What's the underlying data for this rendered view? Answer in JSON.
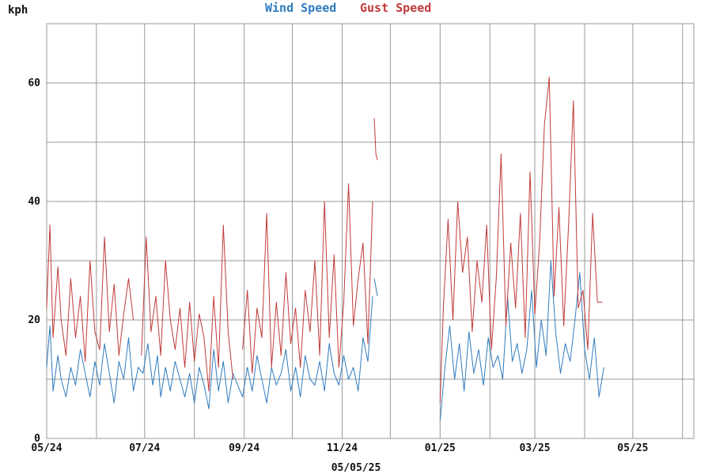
{
  "chart_data": {
    "type": "line",
    "unit_label": "kph",
    "title_parts": [
      "Wind Speed",
      "Gust Speed"
    ],
    "date_label": "05/05/25",
    "x_tick_labels": [
      "05/24",
      "07/24",
      "09/24",
      "11/24",
      "01/25",
      "03/25",
      "05/25"
    ],
    "x_tick_months": [
      "2024-05",
      "2024-07",
      "2024-09",
      "2024-11",
      "2025-01",
      "2025-03",
      "2025-05"
    ],
    "xlim": [
      "2024-05-01",
      "2025-06-08"
    ],
    "y_ticks": [
      0,
      20,
      40,
      60
    ],
    "ylim": [
      0,
      70
    ],
    "grid": true,
    "colors": {
      "wind": "#2f7bbf",
      "gust": "#c03a3a",
      "grid": "#999999"
    },
    "series": [
      {
        "name": "Wind Speed",
        "segments": [
          {
            "x": [
              "2024-05-01",
              "2024-05-03",
              "2024-05-05",
              "2024-05-08",
              "2024-05-10",
              "2024-05-13",
              "2024-05-16",
              "2024-05-19",
              "2024-05-22",
              "2024-05-25",
              "2024-05-28",
              "2024-05-31",
              "2024-06-03",
              "2024-06-06",
              "2024-06-09",
              "2024-06-12",
              "2024-06-15",
              "2024-06-18",
              "2024-06-21",
              "2024-06-24",
              "2024-06-27",
              "2024-06-30",
              "2024-07-03",
              "2024-07-06",
              "2024-07-09",
              "2024-07-11",
              "2024-07-14",
              "2024-07-17",
              "2024-07-20",
              "2024-07-23",
              "2024-07-26",
              "2024-07-29",
              "2024-08-01",
              "2024-08-04",
              "2024-08-07",
              "2024-08-10",
              "2024-08-13",
              "2024-08-16",
              "2024-08-19",
              "2024-08-22",
              "2024-08-25",
              "2024-08-28",
              "2024-08-31",
              "2024-09-03",
              "2024-09-06",
              "2024-09-09",
              "2024-09-12",
              "2024-09-15",
              "2024-09-18",
              "2024-09-21",
              "2024-09-24",
              "2024-09-27",
              "2024-09-30",
              "2024-10-03",
              "2024-10-06",
              "2024-10-09",
              "2024-10-12",
              "2024-10-15",
              "2024-10-18",
              "2024-10-21",
              "2024-10-24",
              "2024-10-27",
              "2024-10-30",
              "2024-11-02",
              "2024-11-05",
              "2024-11-08",
              "2024-11-11",
              "2024-11-14",
              "2024-11-17",
              "2024-11-20"
            ],
            "y": [
              12,
              19,
              8,
              14,
              10,
              7,
              12,
              9,
              15,
              11,
              7,
              13,
              9,
              16,
              11,
              6,
              13,
              10,
              17,
              8,
              12,
              11,
              16,
              9,
              14,
              7,
              12,
              8,
              13,
              10,
              7,
              11,
              6,
              12,
              9,
              5,
              15,
              8,
              13,
              6,
              11,
              9,
              7,
              12,
              8,
              14,
              10,
              6,
              12,
              9,
              11,
              15,
              8,
              12,
              7,
              14,
              10,
              9,
              13,
              8,
              16,
              11,
              9,
              14,
              10,
              12,
              8,
              17,
              13,
              24
            ]
          },
          {
            "x": [
              "2024-11-21",
              "2024-11-23"
            ],
            "y": [
              27,
              24
            ]
          },
          {
            "x": [
              "2025-01-01",
              "2025-01-04",
              "2025-01-07",
              "2025-01-10",
              "2025-01-13",
              "2025-01-16",
              "2025-01-19",
              "2025-01-22",
              "2025-01-25",
              "2025-01-28",
              "2025-01-31",
              "2025-02-03",
              "2025-02-06",
              "2025-02-09",
              "2025-02-12",
              "2025-02-15",
              "2025-02-18",
              "2025-02-21",
              "2025-02-24",
              "2025-02-27",
              "2025-03-02",
              "2025-03-05",
              "2025-03-08",
              "2025-03-11",
              "2025-03-14",
              "2025-03-17",
              "2025-03-20",
              "2025-03-23",
              "2025-03-26",
              "2025-03-29",
              "2025-04-01",
              "2025-04-04",
              "2025-04-07",
              "2025-04-10",
              "2025-04-13"
            ],
            "y": [
              3,
              12,
              19,
              10,
              16,
              8,
              18,
              11,
              15,
              9,
              17,
              12,
              14,
              10,
              24,
              13,
              16,
              11,
              15,
              25,
              12,
              20,
              14,
              30,
              18,
              11,
              16,
              13,
              20,
              28,
              15,
              10,
              17,
              7,
              12
            ]
          }
        ]
      },
      {
        "name": "Gust Speed",
        "segments": [
          {
            "x": [
              "2024-05-01",
              "2024-05-03",
              "2024-05-05",
              "2024-05-08",
              "2024-05-10",
              "2024-05-13",
              "2024-05-16",
              "2024-05-19",
              "2024-05-22",
              "2024-05-25",
              "2024-05-28",
              "2024-05-31",
              "2024-06-03",
              "2024-06-06",
              "2024-06-09",
              "2024-06-12",
              "2024-06-15",
              "2024-06-18",
              "2024-06-21",
              "2024-06-24"
            ],
            "y": [
              22,
              36,
              17,
              29,
              20,
              14,
              27,
              17,
              24,
              13,
              30,
              18,
              15,
              34,
              18,
              26,
              14,
              21,
              27,
              20
            ]
          },
          {
            "x": [
              "2024-06-29",
              "2024-07-02",
              "2024-07-05",
              "2024-07-08",
              "2024-07-11",
              "2024-07-14",
              "2024-07-17",
              "2024-07-20",
              "2024-07-23",
              "2024-07-26",
              "2024-07-29",
              "2024-08-01",
              "2024-08-04",
              "2024-08-07",
              "2024-08-10",
              "2024-08-13",
              "2024-08-16",
              "2024-08-19",
              "2024-08-22",
              "2024-08-25"
            ],
            "y": [
              14,
              34,
              18,
              24,
              14,
              30,
              20,
              15,
              22,
              12,
              23,
              13,
              21,
              17,
              8,
              24,
              12,
              36,
              18,
              10
            ]
          },
          {
            "x": [
              "2024-08-31",
              "2024-09-03",
              "2024-09-06",
              "2024-09-09",
              "2024-09-12",
              "2024-09-15",
              "2024-09-18",
              "2024-09-21",
              "2024-09-24",
              "2024-09-27",
              "2024-09-30",
              "2024-10-03",
              "2024-10-06",
              "2024-10-09",
              "2024-10-12",
              "2024-10-15",
              "2024-10-18",
              "2024-10-21",
              "2024-10-24",
              "2024-10-27",
              "2024-10-30",
              "2024-11-02",
              "2024-11-05",
              "2024-11-08",
              "2024-11-11",
              "2024-11-14",
              "2024-11-17",
              "2024-11-20"
            ],
            "y": [
              15,
              25,
              11,
              22,
              17,
              38,
              12,
              23,
              14,
              28,
              16,
              22,
              12,
              25,
              18,
              30,
              14,
              40,
              17,
              31,
              12,
              23,
              43,
              19,
              27,
              33,
              16,
              40
            ]
          },
          {
            "x": [
              "2024-11-21",
              "2024-11-22",
              "2024-11-23"
            ],
            "y": [
              54,
              48,
              47
            ]
          },
          {
            "x": [
              "2025-01-01",
              "2025-01-03",
              "2025-01-06",
              "2025-01-09",
              "2025-01-12",
              "2025-01-15",
              "2025-01-18",
              "2025-01-21",
              "2025-01-24",
              "2025-01-27",
              "2025-01-30",
              "2025-02-02",
              "2025-02-05",
              "2025-02-08",
              "2025-02-11",
              "2025-02-14",
              "2025-02-17",
              "2025-02-20",
              "2025-02-23",
              "2025-02-26",
              "2025-03-01",
              "2025-03-04",
              "2025-03-07",
              "2025-03-10",
              "2025-03-13",
              "2025-03-16",
              "2025-03-19",
              "2025-03-22",
              "2025-03-25",
              "2025-03-28",
              "2025-03-31",
              "2025-04-03",
              "2025-04-06",
              "2025-04-09",
              "2025-04-12"
            ],
            "y": [
              6,
              22,
              37,
              20,
              40,
              28,
              34,
              18,
              30,
              23,
              36,
              15,
              27,
              48,
              19,
              33,
              22,
              38,
              17,
              45,
              21,
              33,
              53,
              61,
              24,
              39,
              19,
              36,
              57,
              22,
              25,
              15,
              38,
              23,
              23
            ]
          }
        ]
      }
    ]
  }
}
